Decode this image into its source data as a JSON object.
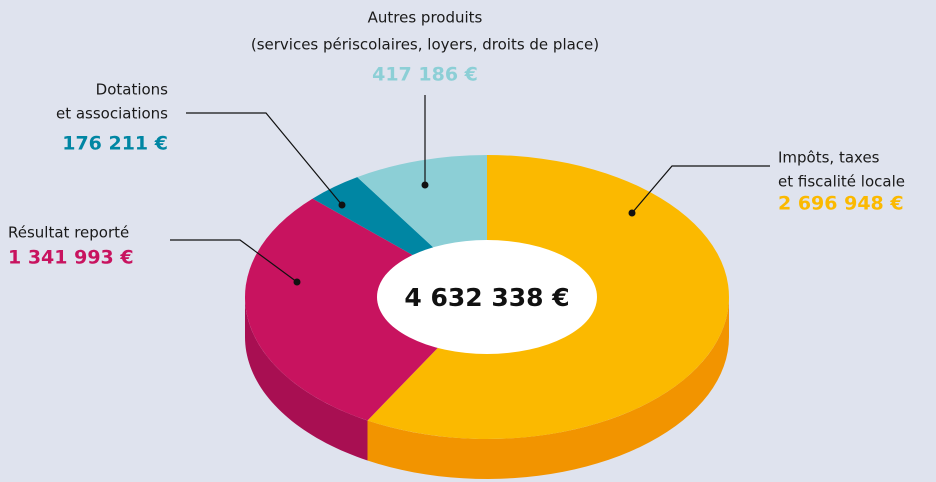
{
  "chart_data": {
    "type": "pie3d",
    "center_label": "4 632 338 €",
    "categories": [
      [
        "Impôts, taxes",
        "et fiscalité locale"
      ],
      [
        "Résultat reporté"
      ],
      [
        "Dotations",
        "et associations"
      ],
      [
        "Autres produits",
        "(services périscolaires, loyers, droits de place)"
      ]
    ],
    "values": [
      2696948,
      1341993,
      176211,
      417186
    ],
    "value_labels": [
      "2 696 948 €",
      "1 341 993 €",
      "176 211 €",
      "417 186 €"
    ],
    "colors": [
      "#fbb900",
      "#c8135f",
      "#0086a3",
      "#8ccfd6"
    ],
    "side_colors": [
      "#f29400",
      "#a80f52",
      "#006d86",
      "#6fb5bd"
    ]
  }
}
